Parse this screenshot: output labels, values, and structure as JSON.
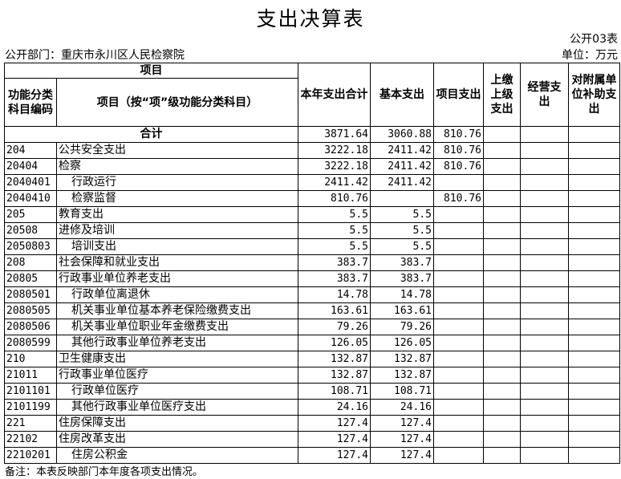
{
  "title": "支出决算表",
  "form_no": "公开03表",
  "department": "公开部门：重庆市永川区人民检察院",
  "unit": "单位：万元",
  "headers": {
    "project": "项目",
    "code": "功能分类科目编码",
    "item": "项目（按“项”级功能分类科目）",
    "total": "本年支出合计",
    "basic": "基本支出",
    "project_exp": "项目支出",
    "upper": "上缴上级支出",
    "business": "经营支出",
    "subsidy": "对附属单位补助支出"
  },
  "total_row": {
    "label": "合计",
    "total": "3871.64",
    "basic": "3060.88",
    "project_exp": "810.76"
  },
  "rows": [
    {
      "code": "204",
      "name": "公共安全支出",
      "level": 1,
      "total": "3222.18",
      "basic": "2411.42",
      "project_exp": "810.76"
    },
    {
      "code": "20404",
      "name": "检察",
      "level": 2,
      "total": "3222.18",
      "basic": "2411.42",
      "project_exp": "810.76"
    },
    {
      "code": "2040401",
      "name": "行政运行",
      "level": 3,
      "total": "2411.42",
      "basic": "2411.42",
      "project_exp": ""
    },
    {
      "code": "2040410",
      "name": "检察监督",
      "level": 3,
      "total": "810.76",
      "basic": "",
      "project_exp": "810.76"
    },
    {
      "code": "205",
      "name": "教育支出",
      "level": 1,
      "total": "5.5",
      "basic": "5.5",
      "project_exp": ""
    },
    {
      "code": "20508",
      "name": "进修及培训",
      "level": 2,
      "total": "5.5",
      "basic": "5.5",
      "project_exp": ""
    },
    {
      "code": "2050803",
      "name": "培训支出",
      "level": 3,
      "total": "5.5",
      "basic": "5.5",
      "project_exp": ""
    },
    {
      "code": "208",
      "name": "社会保障和就业支出",
      "level": 1,
      "total": "383.7",
      "basic": "383.7",
      "project_exp": ""
    },
    {
      "code": "20805",
      "name": "行政事业单位养老支出",
      "level": 2,
      "total": "383.7",
      "basic": "383.7",
      "project_exp": ""
    },
    {
      "code": "2080501",
      "name": "行政单位离退休",
      "level": 3,
      "total": "14.78",
      "basic": "14.78",
      "project_exp": ""
    },
    {
      "code": "2080505",
      "name": "机关事业单位基本养老保险缴费支出",
      "level": 3,
      "total": "163.61",
      "basic": "163.61",
      "project_exp": ""
    },
    {
      "code": "2080506",
      "name": "机关事业单位职业年金缴费支出",
      "level": 3,
      "total": "79.26",
      "basic": "79.26",
      "project_exp": ""
    },
    {
      "code": "2080599",
      "name": "其他行政事业单位养老支出",
      "level": 3,
      "total": "126.05",
      "basic": "126.05",
      "project_exp": ""
    },
    {
      "code": "210",
      "name": "卫生健康支出",
      "level": 1,
      "total": "132.87",
      "basic": "132.87",
      "project_exp": ""
    },
    {
      "code": "21011",
      "name": "行政事业单位医疗",
      "level": 2,
      "total": "132.87",
      "basic": "132.87",
      "project_exp": ""
    },
    {
      "code": "2101101",
      "name": "行政单位医疗",
      "level": 3,
      "total": "108.71",
      "basic": "108.71",
      "project_exp": ""
    },
    {
      "code": "2101199",
      "name": "其他行政事业单位医疗支出",
      "level": 3,
      "total": "24.16",
      "basic": "24.16",
      "project_exp": ""
    },
    {
      "code": "221",
      "name": "住房保障支出",
      "level": 1,
      "total": "127.4",
      "basic": "127.4",
      "project_exp": ""
    },
    {
      "code": "22102",
      "name": "住房改革支出",
      "level": 2,
      "total": "127.4",
      "basic": "127.4",
      "project_exp": ""
    },
    {
      "code": "2210201",
      "name": "住房公积金",
      "level": 3,
      "total": "127.4",
      "basic": "127.4",
      "project_exp": ""
    }
  ],
  "note": "备注：本表反映部门本年度各项支出情况。"
}
